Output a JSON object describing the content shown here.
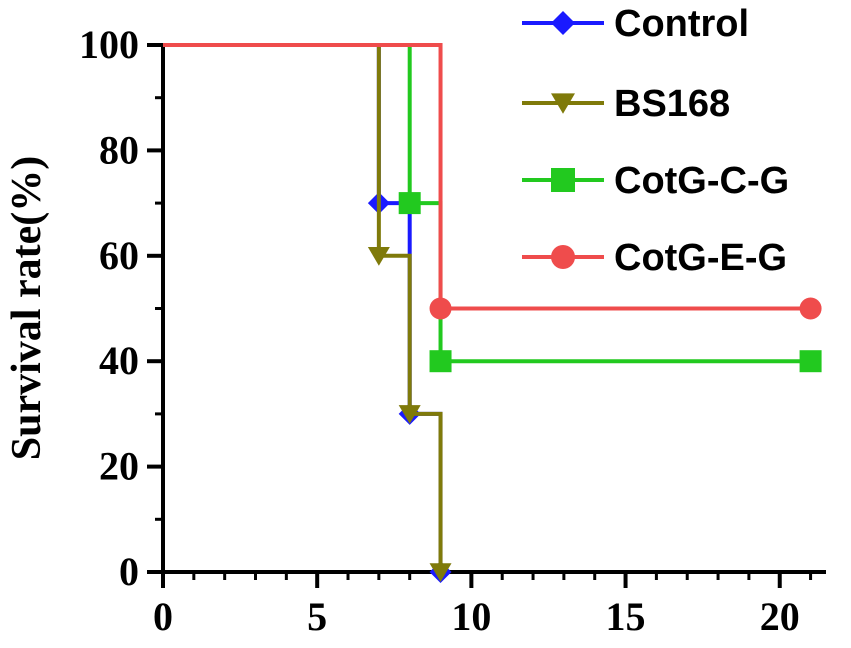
{
  "chart_data": {
    "type": "line",
    "step": true,
    "ylabel": "Survival rate(%)",
    "xlabel": "",
    "xlim": [
      0,
      21.5
    ],
    "ylim": [
      0,
      100
    ],
    "x_ticks": [
      0,
      5,
      10,
      15,
      20
    ],
    "y_ticks": [
      0,
      20,
      40,
      60,
      80,
      100
    ],
    "x_minor_step": 1,
    "y_minor_step": 10,
    "legend_position": "top-right",
    "series": [
      {
        "name": "Control",
        "color": "#1a1aff",
        "marker": "diamond",
        "x": [
          0,
          7,
          8,
          9
        ],
        "y": [
          100,
          70,
          30,
          0
        ]
      },
      {
        "name": "BS168",
        "color": "#7f7a0a",
        "marker": "triangle-down",
        "x": [
          0,
          7,
          8,
          9
        ],
        "y": [
          100,
          60,
          30,
          0
        ]
      },
      {
        "name": "CotG-C-G",
        "color": "#22c91f",
        "marker": "square",
        "x": [
          0,
          8,
          9,
          21
        ],
        "y": [
          100,
          70,
          40,
          40
        ]
      },
      {
        "name": "CotG-E-G",
        "color": "#ef4c4c",
        "marker": "circle",
        "x": [
          0,
          9,
          21
        ],
        "y": [
          100,
          50,
          50
        ]
      }
    ]
  }
}
